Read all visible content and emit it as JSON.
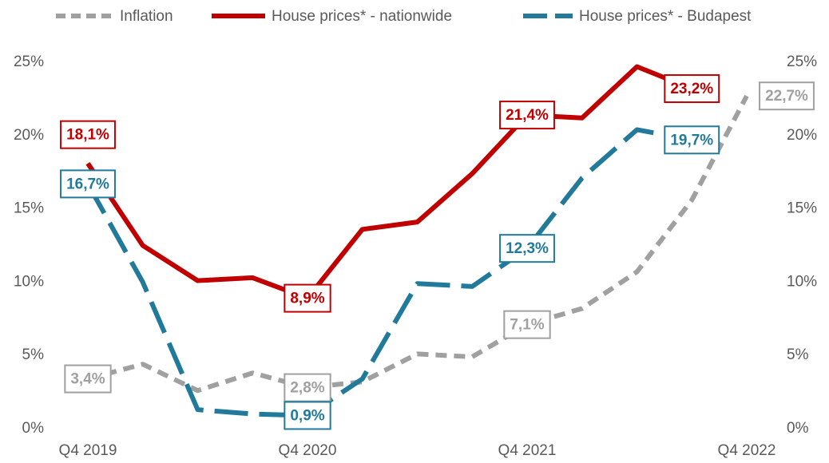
{
  "chart_data": {
    "type": "line",
    "categories": [
      "Q4 2019",
      null,
      null,
      null,
      "Q4 2020",
      null,
      null,
      null,
      "Q4 2021",
      null,
      null,
      null,
      "Q4 2022"
    ],
    "series": [
      {
        "name": "Inflation",
        "color": "#a0a0a0",
        "dash": "short",
        "values": [
          3.4,
          4.4,
          2.6,
          3.8,
          2.8,
          3.2,
          5.1,
          4.9,
          7.1,
          8.2,
          10.7,
          15.6,
          22.7
        ],
        "value_labels": [
          "3,4%",
          null,
          null,
          null,
          "2,8%",
          null,
          null,
          null,
          "7,1%",
          null,
          null,
          null,
          "22,7%"
        ]
      },
      {
        "name": "House prices* - nationwide",
        "color": "#c00000",
        "dash": "solid",
        "values": [
          18.1,
          12.5,
          10.1,
          10.3,
          8.9,
          13.6,
          14.1,
          17.4,
          21.4,
          21.2,
          24.7,
          23.2,
          null
        ],
        "value_labels": [
          "18,1%",
          null,
          null,
          null,
          "8,9%",
          null,
          null,
          null,
          "21,4%",
          null,
          null,
          "23,2%",
          null
        ]
      },
      {
        "name": "House prices* - Budapest",
        "color": "#217a9a",
        "dash": "long",
        "values": [
          16.7,
          10.0,
          1.3,
          1.0,
          0.9,
          3.4,
          9.9,
          9.7,
          12.3,
          17.1,
          20.4,
          19.7,
          null
        ],
        "value_labels": [
          "16,7%",
          null,
          null,
          null,
          "0,9%",
          null,
          null,
          null,
          "12,3%",
          null,
          null,
          "19,7%",
          null
        ]
      }
    ],
    "ylim": [
      0,
      25
    ],
    "yticks": [
      {
        "value": 0,
        "label": "0%"
      },
      {
        "value": 5,
        "label": "5%"
      },
      {
        "value": 10,
        "label": "10%"
      },
      {
        "value": 15,
        "label": "15%"
      },
      {
        "value": 20,
        "label": "20%"
      },
      {
        "value": 25,
        "label": "25%"
      }
    ],
    "y2lim": [
      0,
      25
    ],
    "y2ticks": [
      {
        "value": 0,
        "label": "0%"
      },
      {
        "value": 5,
        "label": "5%"
      },
      {
        "value": 10,
        "label": "10%"
      },
      {
        "value": 15,
        "label": "15%"
      },
      {
        "value": 20,
        "label": "20%"
      },
      {
        "value": 25,
        "label": "25%"
      }
    ],
    "legend": "top",
    "grid": false
  }
}
